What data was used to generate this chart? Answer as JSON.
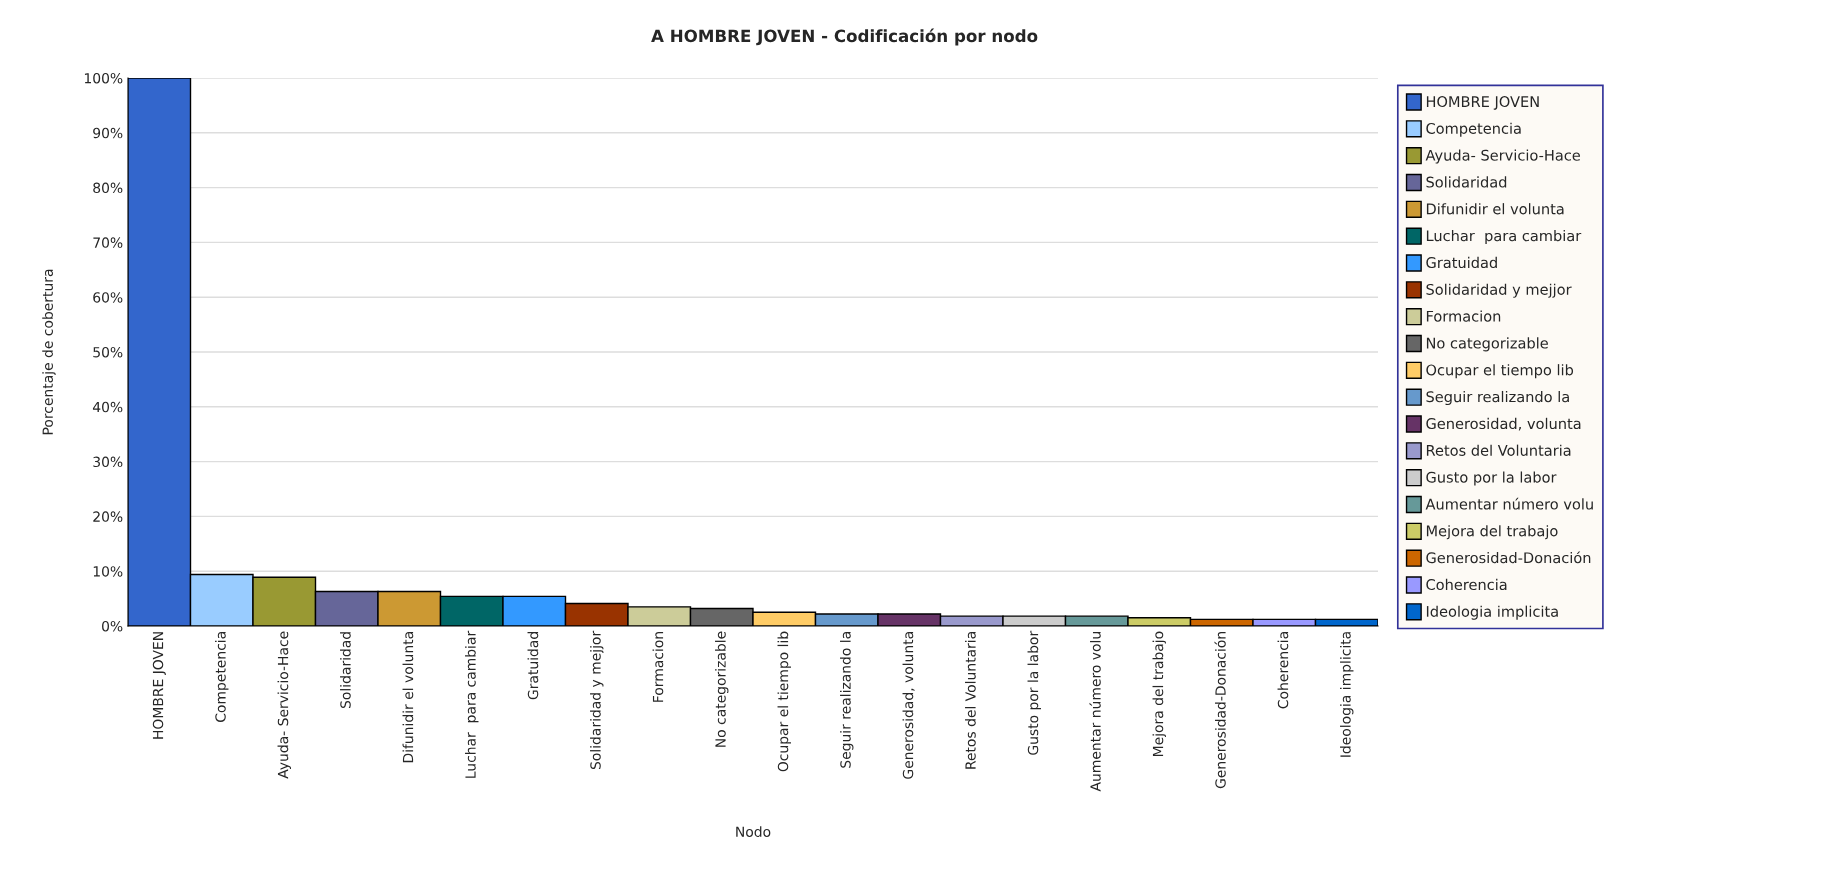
{
  "chart_data": {
    "type": "bar",
    "title": "A HOMBRE JOVEN - Codificación por nodo",
    "xlabel": "Nodo",
    "ylabel": "Porcentaje de cobertura",
    "categories": [
      "HOMBRE JOVEN",
      "Competencia",
      "Ayuda- Servicio-Hace",
      "Solidaridad",
      "Difunidir el volunta",
      "Luchar  para cambiar",
      "Gratuidad",
      "Solidaridad y mejjor",
      "Formacion",
      "No categorizable",
      "Ocupar el tiempo lib",
      "Seguir realizando la",
      "Generosidad, volunta",
      "Retos del Voluntaria",
      "Gusto por la labor",
      "Aumentar número volu",
      "Mejora del trabajo",
      "Generosidad-Donación",
      "Coherencia",
      "Ideologia implicita"
    ],
    "series": [
      {
        "name": "HOMBRE JOVEN",
        "color": "#3366cc",
        "values": [
          100,
          null,
          null,
          null,
          null,
          null,
          null,
          null,
          null,
          null,
          null,
          null,
          null,
          null,
          null,
          null,
          null,
          null,
          null,
          null
        ]
      },
      {
        "name": "Competencia",
        "color": "#99ccff",
        "values": [
          null,
          9.4,
          null,
          null,
          null,
          null,
          null,
          null,
          null,
          null,
          null,
          null,
          null,
          null,
          null,
          null,
          null,
          null,
          null,
          null
        ]
      },
      {
        "name": "Ayuda- Servicio-Hace",
        "color": "#999933",
        "values": [
          null,
          null,
          8.9,
          null,
          null,
          null,
          null,
          null,
          null,
          null,
          null,
          null,
          null,
          null,
          null,
          null,
          null,
          null,
          null,
          null
        ]
      },
      {
        "name": "Solidaridad",
        "color": "#666699",
        "values": [
          null,
          null,
          null,
          6.3,
          null,
          null,
          null,
          null,
          null,
          null,
          null,
          null,
          null,
          null,
          null,
          null,
          null,
          null,
          null,
          null
        ]
      },
      {
        "name": "Difunidir el volunta",
        "color": "#cc9933",
        "values": [
          null,
          null,
          null,
          null,
          6.3,
          null,
          null,
          null,
          null,
          null,
          null,
          null,
          null,
          null,
          null,
          null,
          null,
          null,
          null,
          null
        ]
      },
      {
        "name": "Luchar  para cambiar",
        "color": "#006666",
        "values": [
          null,
          null,
          null,
          null,
          null,
          5.4,
          null,
          null,
          null,
          null,
          null,
          null,
          null,
          null,
          null,
          null,
          null,
          null,
          null,
          null
        ]
      },
      {
        "name": "Gratuidad",
        "color": "#3399ff",
        "values": [
          null,
          null,
          null,
          null,
          null,
          null,
          5.4,
          null,
          null,
          null,
          null,
          null,
          null,
          null,
          null,
          null,
          null,
          null,
          null,
          null
        ]
      },
      {
        "name": "Solidaridad y mejjor",
        "color": "#993300",
        "values": [
          null,
          null,
          null,
          null,
          null,
          null,
          null,
          4.1,
          null,
          null,
          null,
          null,
          null,
          null,
          null,
          null,
          null,
          null,
          null,
          null
        ]
      },
      {
        "name": "Formacion",
        "color": "#cccc99",
        "values": [
          null,
          null,
          null,
          null,
          null,
          null,
          null,
          null,
          3.5,
          null,
          null,
          null,
          null,
          null,
          null,
          null,
          null,
          null,
          null,
          null
        ]
      },
      {
        "name": "No categorizable",
        "color": "#666666",
        "values": [
          null,
          null,
          null,
          null,
          null,
          null,
          null,
          null,
          null,
          3.2,
          null,
          null,
          null,
          null,
          null,
          null,
          null,
          null,
          null,
          null
        ]
      },
      {
        "name": "Ocupar el tiempo lib",
        "color": "#ffcc66",
        "values": [
          null,
          null,
          null,
          null,
          null,
          null,
          null,
          null,
          null,
          null,
          2.5,
          null,
          null,
          null,
          null,
          null,
          null,
          null,
          null,
          null
        ]
      },
      {
        "name": "Seguir realizando la",
        "color": "#6699cc",
        "values": [
          null,
          null,
          null,
          null,
          null,
          null,
          null,
          null,
          null,
          null,
          null,
          2.2,
          null,
          null,
          null,
          null,
          null,
          null,
          null,
          null
        ]
      },
      {
        "name": "Generosidad, volunta",
        "color": "#663366",
        "values": [
          null,
          null,
          null,
          null,
          null,
          null,
          null,
          null,
          null,
          null,
          null,
          null,
          2.2,
          null,
          null,
          null,
          null,
          null,
          null,
          null
        ]
      },
      {
        "name": "Retos del Voluntaria",
        "color": "#9999cc",
        "values": [
          null,
          null,
          null,
          null,
          null,
          null,
          null,
          null,
          null,
          null,
          null,
          null,
          null,
          1.8,
          null,
          null,
          null,
          null,
          null,
          null
        ]
      },
      {
        "name": "Gusto por la labor",
        "color": "#cccccc",
        "values": [
          null,
          null,
          null,
          null,
          null,
          null,
          null,
          null,
          null,
          null,
          null,
          null,
          null,
          null,
          1.8,
          null,
          null,
          null,
          null,
          null
        ]
      },
      {
        "name": "Aumentar número volu",
        "color": "#669999",
        "values": [
          null,
          null,
          null,
          null,
          null,
          null,
          null,
          null,
          null,
          null,
          null,
          null,
          null,
          null,
          null,
          1.8,
          null,
          null,
          null,
          null
        ]
      },
      {
        "name": "Mejora del trabajo",
        "color": "#cccc66",
        "values": [
          null,
          null,
          null,
          null,
          null,
          null,
          null,
          null,
          null,
          null,
          null,
          null,
          null,
          null,
          null,
          null,
          1.5,
          null,
          null,
          null
        ]
      },
      {
        "name": "Generosidad-Donación",
        "color": "#cc6600",
        "values": [
          null,
          null,
          null,
          null,
          null,
          null,
          null,
          null,
          null,
          null,
          null,
          null,
          null,
          null,
          null,
          null,
          null,
          1.2,
          null,
          null
        ]
      },
      {
        "name": "Coherencia",
        "color": "#9999ff",
        "values": [
          null,
          null,
          null,
          null,
          null,
          null,
          null,
          null,
          null,
          null,
          null,
          null,
          null,
          null,
          null,
          null,
          null,
          null,
          1.2,
          null
        ]
      },
      {
        "name": "Ideologia implicita",
        "color": "#0066cc",
        "values": [
          null,
          null,
          null,
          null,
          null,
          null,
          null,
          null,
          null,
          null,
          null,
          null,
          null,
          null,
          null,
          null,
          null,
          null,
          null,
          1.2
        ]
      }
    ],
    "ylim": [
      0,
      100
    ],
    "yticks": [
      {
        "value": 0,
        "label": "0%"
      },
      {
        "value": 10,
        "label": "10%"
      },
      {
        "value": 20,
        "label": "20%"
      },
      {
        "value": 30,
        "label": "30%"
      },
      {
        "value": 40,
        "label": "40%"
      },
      {
        "value": 50,
        "label": "50%"
      },
      {
        "value": 60,
        "label": "60%"
      },
      {
        "value": 70,
        "label": "70%"
      },
      {
        "value": 80,
        "label": "80%"
      },
      {
        "value": 90,
        "label": "90%"
      },
      {
        "value": 100,
        "label": "100%"
      }
    ],
    "grid": "y",
    "legend": "right"
  }
}
